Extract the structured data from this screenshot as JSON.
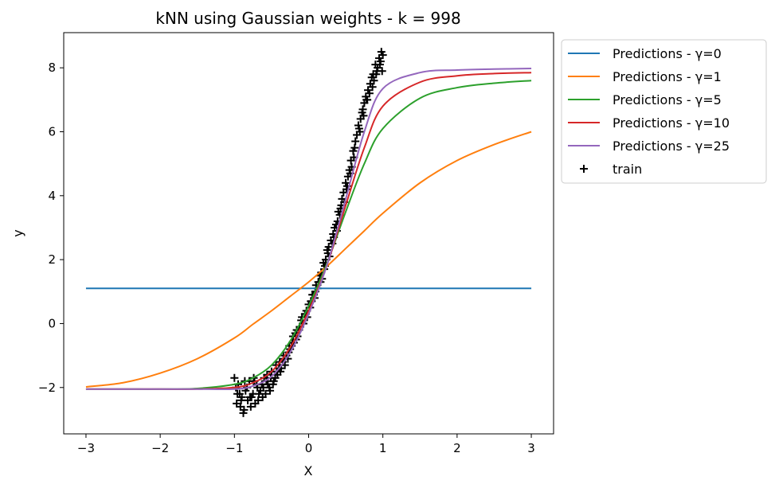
{
  "chart_data": {
    "type": "line",
    "title": "kNN using Gaussian weights - k = 998",
    "xlabel": "X",
    "ylabel": "y",
    "xlim": [
      -3.3,
      3.3
    ],
    "ylim": [
      -3.45,
      9.1
    ],
    "xticks": [
      -3,
      -2,
      -1,
      0,
      1,
      2,
      3
    ],
    "xtick_labels": [
      "−3",
      "−2",
      "−1",
      "0",
      "1",
      "2",
      "3"
    ],
    "yticks": [
      -2,
      0,
      2,
      4,
      6,
      8
    ],
    "ytick_labels": [
      "−2",
      "0",
      "2",
      "4",
      "6",
      "8"
    ],
    "grid": false,
    "legend_position": "outside-top-right",
    "x": [
      -3.0,
      -2.5,
      -2.0,
      -1.5,
      -1.0,
      -0.75,
      -0.5,
      -0.25,
      0.0,
      0.25,
      0.5,
      0.75,
      1.0,
      1.5,
      2.0,
      2.5,
      3.0
    ],
    "series": [
      {
        "name": "Predictions - γ=0",
        "color": "#1f77b4",
        "values": [
          1.1,
          1.1,
          1.1,
          1.1,
          1.1,
          1.1,
          1.1,
          1.1,
          1.1,
          1.1,
          1.1,
          1.1,
          1.1,
          1.1,
          1.1,
          1.1,
          1.1
        ]
      },
      {
        "name": "Predictions - γ=1",
        "color": "#ff7f0e",
        "values": [
          -1.98,
          -1.85,
          -1.55,
          -1.1,
          -0.45,
          -0.02,
          0.4,
          0.85,
          1.3,
          1.8,
          2.35,
          2.9,
          3.45,
          4.4,
          5.1,
          5.6,
          6.0
        ]
      },
      {
        "name": "Predictions - γ=5",
        "color": "#2ca02c",
        "values": [
          -2.05,
          -2.05,
          -2.05,
          -2.03,
          -1.9,
          -1.7,
          -1.3,
          -0.55,
          0.55,
          1.9,
          3.5,
          5.0,
          6.1,
          7.05,
          7.38,
          7.52,
          7.6
        ]
      },
      {
        "name": "Predictions - γ=10",
        "color": "#d62728",
        "values": [
          -2.05,
          -2.05,
          -2.05,
          -2.05,
          -2.0,
          -1.85,
          -1.5,
          -0.75,
          0.4,
          1.85,
          3.7,
          5.5,
          6.8,
          7.55,
          7.75,
          7.82,
          7.85
        ]
      },
      {
        "name": "Predictions - γ=25",
        "color": "#9467bd",
        "values": [
          -2.05,
          -2.05,
          -2.05,
          -2.05,
          -2.05,
          -1.95,
          -1.65,
          -0.9,
          0.3,
          1.85,
          3.9,
          6.0,
          7.35,
          7.85,
          7.93,
          7.96,
          7.98
        ]
      }
    ],
    "scatter": {
      "name": "train",
      "color": "#000000",
      "marker": "plus",
      "x": [
        -1.0,
        -0.97,
        -0.95,
        -0.92,
        -0.9,
        -0.88,
        -0.85,
        -0.82,
        -0.8,
        -0.78,
        -0.75,
        -0.72,
        -0.7,
        -0.68,
        -0.65,
        -0.62,
        -0.6,
        -0.58,
        -0.55,
        -0.52,
        -0.5,
        -0.48,
        -0.45,
        -0.42,
        -0.4,
        -0.38,
        -0.35,
        -0.32,
        -0.3,
        -0.28,
        -0.25,
        -0.22,
        -0.2,
        -0.18,
        -0.15,
        -0.12,
        -0.1,
        -0.08,
        -0.05,
        -0.02,
        0.0,
        0.02,
        0.05,
        0.08,
        0.1,
        0.12,
        0.15,
        0.18,
        0.2,
        0.22,
        0.25,
        0.28,
        0.3,
        0.32,
        0.35,
        0.38,
        0.4,
        0.42,
        0.45,
        0.48,
        0.5,
        0.52,
        0.55,
        0.58,
        0.6,
        0.62,
        0.65,
        0.68,
        0.7,
        0.72,
        0.75,
        0.78,
        0.8,
        0.82,
        0.85,
        0.88,
        0.9,
        0.92,
        0.95,
        0.97,
        1.0,
        -0.98,
        -0.93,
        -0.87,
        -0.83,
        -0.77,
        -0.73,
        -0.67,
        -0.63,
        -0.57,
        -0.53,
        -0.47,
        -0.43,
        -0.37,
        -0.33,
        -0.27,
        -0.23,
        -0.17,
        -0.13,
        -0.07,
        -0.03,
        0.03,
        0.07,
        0.13,
        0.17,
        0.23,
        0.27,
        0.33,
        0.37,
        0.43,
        0.47,
        0.53,
        0.57,
        0.63,
        0.67,
        0.73,
        0.77,
        0.83,
        0.87,
        0.93,
        0.98,
        -0.96,
        -0.91,
        -0.86,
        -0.79,
        -0.74,
        -0.69,
        -0.61,
        -0.56,
        -0.51,
        -0.44,
        -0.39,
        -0.34,
        -0.26,
        -0.21,
        -0.16,
        -0.09,
        -0.04,
        0.04,
        0.09,
        0.16,
        0.21,
        0.26,
        0.34,
        0.39,
        0.44,
        0.51,
        0.56,
        0.61,
        0.69,
        0.74,
        0.79,
        0.86,
        0.91,
        0.96,
        0.99
      ],
      "y": [
        -1.7,
        -2.5,
        -1.9,
        -2.6,
        -2.3,
        -2.8,
        -2.1,
        -2.4,
        -1.8,
        -2.6,
        -2.2,
        -2.5,
        -1.9,
        -2.4,
        -2.1,
        -2.3,
        -1.7,
        -2.2,
        -1.9,
        -2.1,
        -1.5,
        -1.9,
        -1.7,
        -1.6,
        -1.4,
        -1.5,
        -1.2,
        -1.3,
        -1.0,
        -1.1,
        -0.8,
        -0.6,
        -0.6,
        -0.3,
        -0.4,
        -0.1,
        0.1,
        0.0,
        0.3,
        0.2,
        0.6,
        0.5,
        0.9,
        0.8,
        1.2,
        1.1,
        1.5,
        1.4,
        1.9,
        1.8,
        2.3,
        2.1,
        2.6,
        2.5,
        3.0,
        2.9,
        3.5,
        3.4,
        3.9,
        3.8,
        4.4,
        4.3,
        4.8,
        4.9,
        5.4,
        5.5,
        5.9,
        6.1,
        6.4,
        6.6,
        6.9,
        7.0,
        7.3,
        7.2,
        7.7,
        7.6,
        8.1,
        7.9,
        8.3,
        8.2,
        8.4,
        -2.0,
        -2.2,
        -2.7,
        -2.0,
        -2.3,
        -1.8,
        -2.2,
        -1.9,
        -1.8,
        -2.0,
        -1.8,
        -1.5,
        -1.4,
        -1.1,
        -0.9,
        -0.7,
        -0.5,
        -0.2,
        0.0,
        0.4,
        0.7,
        0.9,
        1.3,
        1.6,
        2.0,
        2.4,
        2.8,
        3.1,
        3.6,
        4.1,
        4.6,
        5.1,
        5.7,
        6.2,
        6.7,
        7.1,
        7.5,
        7.8,
        8.0,
        8.5,
        -2.2,
        -2.4,
        -1.8,
        -2.3,
        -1.7,
        -2.0,
        -2.0,
        -1.6,
        -1.7,
        -1.3,
        -1.2,
        -1.0,
        -0.7,
        -0.4,
        -0.2,
        0.2,
        0.3,
        0.7,
        1.0,
        1.3,
        1.7,
        2.2,
        2.7,
        3.2,
        3.7,
        4.2,
        4.7,
        5.2,
        6.0,
        6.5,
        7.0,
        7.4,
        7.8,
        8.1,
        7.9
      ]
    }
  }
}
